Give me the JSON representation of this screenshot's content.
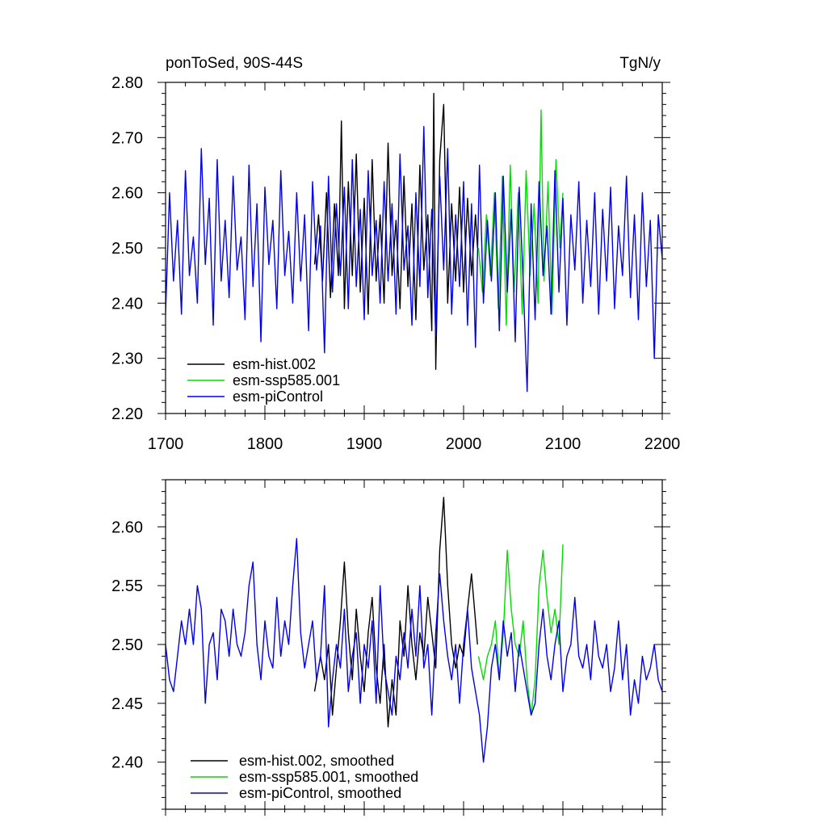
{
  "chart_data": [
    {
      "type": "line",
      "title_left": "ponToSed, 90S-44S",
      "title_right": "TgN/y",
      "xlabel": "",
      "ylabel": "",
      "xlim": [
        1700,
        2200
      ],
      "ylim": [
        2.2,
        2.8
      ],
      "xticks": [
        1700,
        1800,
        1900,
        2000,
        2100,
        2200
      ],
      "xtick_labels": [
        "1700",
        "1800",
        "1900",
        "2000",
        "2100",
        "2200"
      ],
      "yticks": [
        2.2,
        2.3,
        2.4,
        2.5,
        2.6,
        2.7,
        2.8
      ],
      "ytick_labels": [
        "2.20",
        "2.30",
        "2.40",
        "2.50",
        "2.60",
        "2.70",
        "2.80"
      ],
      "legend_position": "bottom-left",
      "series": [
        {
          "name": "esm-hist.002",
          "color": "#000000",
          "x": [
            1850,
            1854,
            1858,
            1862,
            1866,
            1870,
            1874,
            1877,
            1880,
            1884,
            1888,
            1892,
            1896,
            1900,
            1904,
            1908,
            1912,
            1916,
            1920,
            1924,
            1928,
            1932,
            1936,
            1940,
            1944,
            1948,
            1952,
            1956,
            1960,
            1964,
            1968,
            1970,
            1972,
            1976,
            1980,
            1984,
            1988,
            1992,
            1996,
            2000,
            2004,
            2008,
            2012,
            2014
          ],
          "values": [
            2.47,
            2.56,
            2.44,
            2.6,
            2.41,
            2.58,
            2.45,
            2.73,
            2.39,
            2.62,
            2.45,
            2.67,
            2.42,
            2.59,
            2.38,
            2.66,
            2.44,
            2.56,
            2.4,
            2.69,
            2.45,
            2.55,
            2.39,
            2.63,
            2.43,
            2.58,
            2.37,
            2.65,
            2.46,
            2.56,
            2.35,
            2.78,
            2.28,
            2.66,
            2.76,
            2.4,
            2.58,
            2.44,
            2.61,
            2.42,
            2.59,
            2.45,
            2.56,
            2.5
          ]
        },
        {
          "name": "esm-ssp585.001",
          "color": "#00dd00",
          "x": [
            2015,
            2019,
            2023,
            2027,
            2031,
            2035,
            2039,
            2043,
            2047,
            2051,
            2055,
            2059,
            2063,
            2067,
            2071,
            2075,
            2078,
            2081,
            2085,
            2089,
            2093,
            2097,
            2100
          ],
          "values": [
            2.5,
            2.42,
            2.56,
            2.45,
            2.6,
            2.39,
            2.63,
            2.36,
            2.65,
            2.42,
            2.6,
            2.38,
            2.64,
            2.45,
            2.58,
            2.4,
            2.75,
            2.44,
            2.62,
            2.38,
            2.66,
            2.5,
            2.6
          ]
        },
        {
          "name": "esm-piControl",
          "color": "#0000ee",
          "x": [
            1700,
            1704,
            1708,
            1712,
            1716,
            1720,
            1724,
            1728,
            1732,
            1736,
            1740,
            1744,
            1748,
            1752,
            1756,
            1760,
            1764,
            1768,
            1772,
            1776,
            1780,
            1784,
            1788,
            1792,
            1796,
            1800,
            1804,
            1808,
            1812,
            1816,
            1820,
            1824,
            1828,
            1832,
            1836,
            1840,
            1844,
            1848,
            1852,
            1856,
            1860,
            1864,
            1868,
            1872,
            1876,
            1880,
            1884,
            1888,
            1892,
            1896,
            1900,
            1904,
            1908,
            1912,
            1916,
            1920,
            1924,
            1928,
            1932,
            1936,
            1940,
            1944,
            1948,
            1952,
            1956,
            1960,
            1964,
            1968,
            1972,
            1976,
            1980,
            1984,
            1988,
            1992,
            1996,
            2000,
            2004,
            2008,
            2012,
            2016,
            2020,
            2024,
            2028,
            2032,
            2036,
            2040,
            2044,
            2048,
            2052,
            2056,
            2060,
            2064,
            2068,
            2072,
            2076,
            2080,
            2084,
            2088,
            2092,
            2096,
            2100,
            2104,
            2108,
            2112,
            2116,
            2120,
            2124,
            2128,
            2132,
            2136,
            2140,
            2144,
            2148,
            2152,
            2156,
            2160,
            2164,
            2168,
            2172,
            2176,
            2180,
            2184,
            2188,
            2192,
            2196,
            2200
          ],
          "values": [
            2.38,
            2.6,
            2.44,
            2.55,
            2.38,
            2.64,
            2.45,
            2.52,
            2.4,
            2.68,
            2.47,
            2.59,
            2.36,
            2.66,
            2.44,
            2.55,
            2.41,
            2.63,
            2.46,
            2.52,
            2.37,
            2.65,
            2.43,
            2.58,
            2.33,
            2.61,
            2.47,
            2.55,
            2.39,
            2.64,
            2.45,
            2.53,
            2.4,
            2.6,
            2.44,
            2.56,
            2.35,
            2.62,
            2.46,
            2.54,
            2.31,
            2.63,
            2.42,
            2.58,
            2.45,
            2.61,
            2.39,
            2.66,
            2.43,
            2.57,
            2.37,
            2.64,
            2.45,
            2.55,
            2.4,
            2.62,
            2.44,
            2.58,
            2.38,
            2.67,
            2.46,
            2.54,
            2.36,
            2.6,
            2.43,
            2.72,
            2.41,
            2.57,
            2.34,
            2.63,
            2.46,
            2.68,
            2.38,
            2.56,
            2.43,
            2.62,
            2.36,
            2.58,
            2.32,
            2.65,
            2.4,
            2.55,
            2.44,
            2.6,
            2.35,
            2.63,
            2.42,
            2.57,
            2.33,
            2.61,
            2.44,
            2.24,
            2.58,
            2.37,
            2.62,
            2.45,
            2.54,
            2.38,
            2.64,
            2.42,
            2.59,
            2.36,
            2.56,
            2.46,
            2.62,
            2.4,
            2.55,
            2.43,
            2.6,
            2.38,
            2.57,
            2.44,
            2.61,
            2.39,
            2.54,
            2.45,
            2.63,
            2.41,
            2.56,
            2.37,
            2.6,
            2.43,
            2.55,
            2.3,
            2.56,
            2.48
          ]
        }
      ]
    },
    {
      "type": "line",
      "title_left": "",
      "title_right": "",
      "xlabel": "",
      "ylabel": "",
      "xlim": [
        1700,
        2200
      ],
      "ylim": [
        2.36,
        2.64
      ],
      "xticks": [
        1700,
        1800,
        1900,
        2000,
        2100,
        2200
      ],
      "xtick_labels": [],
      "yticks": [
        2.4,
        2.45,
        2.5,
        2.55,
        2.6
      ],
      "ytick_labels": [
        "2.40",
        "2.45",
        "2.50",
        "2.55",
        "2.60"
      ],
      "legend_position": "bottom-left",
      "series": [
        {
          "name": "esm-hist.002, smoothed",
          "color": "#000000",
          "x": [
            1850,
            1856,
            1860,
            1864,
            1868,
            1872,
            1876,
            1880,
            1884,
            1888,
            1892,
            1896,
            1900,
            1904,
            1908,
            1912,
            1916,
            1920,
            1924,
            1928,
            1932,
            1936,
            1940,
            1944,
            1948,
            1952,
            1956,
            1960,
            1964,
            1968,
            1972,
            1976,
            1980,
            1984,
            1988,
            1992,
            1996,
            2000,
            2004,
            2008,
            2012,
            2014
          ],
          "values": [
            2.46,
            2.49,
            2.47,
            2.5,
            2.44,
            2.48,
            2.52,
            2.57,
            2.51,
            2.47,
            2.53,
            2.49,
            2.46,
            2.51,
            2.54,
            2.48,
            2.45,
            2.5,
            2.43,
            2.47,
            2.44,
            2.52,
            2.49,
            2.55,
            2.5,
            2.47,
            2.51,
            2.49,
            2.54,
            2.51,
            2.48,
            2.58,
            2.625,
            2.55,
            2.5,
            2.48,
            2.5,
            2.49,
            2.53,
            2.56,
            2.52,
            2.5
          ]
        },
        {
          "name": "esm-ssp585.001, smoothed",
          "color": "#00dd00",
          "x": [
            2015,
            2020,
            2024,
            2028,
            2032,
            2036,
            2040,
            2044,
            2048,
            2052,
            2056,
            2060,
            2064,
            2068,
            2072,
            2076,
            2080,
            2084,
            2088,
            2092,
            2096,
            2100
          ],
          "values": [
            2.49,
            2.47,
            2.49,
            2.5,
            2.52,
            2.47,
            2.51,
            2.58,
            2.53,
            2.5,
            2.49,
            2.52,
            2.47,
            2.44,
            2.47,
            2.55,
            2.58,
            2.54,
            2.51,
            2.53,
            2.5,
            2.585
          ]
        },
        {
          "name": "esm-piControl, smoothed",
          "color": "#0000ee",
          "x": [
            1700,
            1704,
            1708,
            1712,
            1716,
            1720,
            1724,
            1728,
            1732,
            1736,
            1740,
            1744,
            1748,
            1752,
            1756,
            1760,
            1764,
            1768,
            1772,
            1776,
            1780,
            1784,
            1788,
            1792,
            1796,
            1800,
            1804,
            1808,
            1812,
            1816,
            1820,
            1824,
            1828,
            1832,
            1836,
            1840,
            1844,
            1848,
            1852,
            1856,
            1860,
            1864,
            1868,
            1872,
            1876,
            1880,
            1884,
            1888,
            1892,
            1896,
            1900,
            1904,
            1908,
            1912,
            1916,
            1920,
            1924,
            1928,
            1932,
            1936,
            1940,
            1944,
            1948,
            1952,
            1956,
            1960,
            1964,
            1968,
            1972,
            1976,
            1980,
            1984,
            1988,
            1992,
            1996,
            2000,
            2004,
            2008,
            2012,
            2016,
            2020,
            2024,
            2028,
            2032,
            2036,
            2040,
            2044,
            2048,
            2052,
            2056,
            2060,
            2064,
            2068,
            2072,
            2076,
            2080,
            2084,
            2088,
            2092,
            2096,
            2100,
            2104,
            2108,
            2112,
            2116,
            2120,
            2124,
            2128,
            2132,
            2136,
            2140,
            2144,
            2148,
            2152,
            2156,
            2160,
            2164,
            2168,
            2172,
            2176,
            2180,
            2184,
            2188,
            2192,
            2196,
            2200
          ],
          "values": [
            2.5,
            2.47,
            2.46,
            2.49,
            2.52,
            2.5,
            2.53,
            2.5,
            2.55,
            2.53,
            2.45,
            2.5,
            2.51,
            2.47,
            2.53,
            2.52,
            2.49,
            2.53,
            2.5,
            2.49,
            2.51,
            2.55,
            2.57,
            2.5,
            2.47,
            2.52,
            2.49,
            2.48,
            2.54,
            2.49,
            2.52,
            2.5,
            2.55,
            2.59,
            2.51,
            2.48,
            2.5,
            2.52,
            2.47,
            2.49,
            2.55,
            2.43,
            2.47,
            2.5,
            2.48,
            2.53,
            2.46,
            2.49,
            2.51,
            2.45,
            2.5,
            2.48,
            2.52,
            2.45,
            2.55,
            2.48,
            2.46,
            2.44,
            2.49,
            2.47,
            2.51,
            2.48,
            2.53,
            2.49,
            2.55,
            2.48,
            2.5,
            2.44,
            2.51,
            2.56,
            2.52,
            2.49,
            2.47,
            2.5,
            2.45,
            2.5,
            2.53,
            2.48,
            2.46,
            2.44,
            2.4,
            2.43,
            2.48,
            2.5,
            2.47,
            2.52,
            2.49,
            2.51,
            2.46,
            2.5,
            2.48,
            2.46,
            2.44,
            2.45,
            2.5,
            2.53,
            2.49,
            2.47,
            2.5,
            2.52,
            2.46,
            2.49,
            2.5,
            2.54,
            2.49,
            2.48,
            2.5,
            2.47,
            2.52,
            2.49,
            2.48,
            2.5,
            2.46,
            2.48,
            2.52,
            2.47,
            2.5,
            2.44,
            2.47,
            2.45,
            2.49,
            2.47,
            2.48,
            2.5,
            2.47,
            2.46
          ]
        }
      ]
    }
  ]
}
